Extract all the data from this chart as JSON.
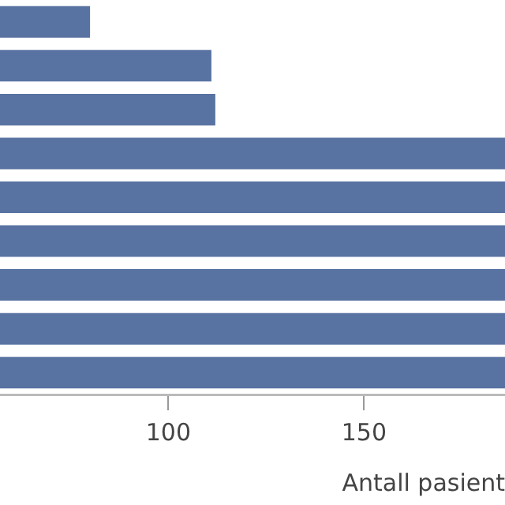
{
  "chart_data": {
    "type": "bar",
    "orientation": "horizontal",
    "xlabel": "Antall pasient",
    "categories": [
      null,
      null,
      null,
      null,
      null,
      null,
      null,
      null,
      null
    ],
    "values": [
      80,
      111,
      112,
      186,
      186,
      186,
      186,
      186,
      186
    ],
    "color": "#5872a2",
    "xlim": [
      57,
      186
    ],
    "xticks": [
      100,
      150
    ],
    "grid": false,
    "legend": false
  }
}
